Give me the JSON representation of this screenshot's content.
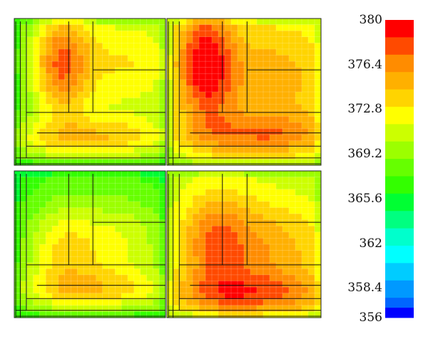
{
  "chart_data": {
    "type": "heatmap",
    "panels": 4,
    "panel_layout": "2x2",
    "colorbar": {
      "min": 356,
      "max": 380,
      "tick_labels": [
        "380",
        "376.4",
        "372.8",
        "369.2",
        "365.6",
        "362",
        "358.4",
        "356"
      ],
      "tick_values": [
        380,
        376.4,
        372.8,
        369.2,
        365.6,
        362,
        358.4,
        356
      ],
      "bands": [
        {
          "from": 378.6,
          "to": 380.0,
          "color": "#ff0000"
        },
        {
          "from": 377.2,
          "to": 378.6,
          "color": "#ff4a00"
        },
        {
          "from": 375.8,
          "to": 377.2,
          "color": "#ff8c00"
        },
        {
          "from": 374.4,
          "to": 375.8,
          "color": "#ffb000"
        },
        {
          "from": 373.0,
          "to": 374.4,
          "color": "#ffd400"
        },
        {
          "from": 371.6,
          "to": 373.0,
          "color": "#ffff00"
        },
        {
          "from": 370.2,
          "to": 371.6,
          "color": "#ccff00"
        },
        {
          "from": 368.8,
          "to": 370.2,
          "color": "#9cff00"
        },
        {
          "from": 367.4,
          "to": 368.8,
          "color": "#66ff00"
        },
        {
          "from": 366.0,
          "to": 367.4,
          "color": "#33ff00"
        },
        {
          "from": 364.6,
          "to": 366.0,
          "color": "#00ff33"
        },
        {
          "from": 363.2,
          "to": 364.6,
          "color": "#00ff80"
        },
        {
          "from": 361.8,
          "to": 363.2,
          "color": "#00ffcc"
        },
        {
          "from": 360.4,
          "to": 361.8,
          "color": "#00ffff"
        },
        {
          "from": 359.0,
          "to": 360.4,
          "color": "#00ccff"
        },
        {
          "from": 357.6,
          "to": 359.0,
          "color": "#0099ff"
        },
        {
          "from": 356.8,
          "to": 357.6,
          "color": "#0066ff"
        },
        {
          "from": 356.0,
          "to": 356.8,
          "color": "#0000ff"
        }
      ]
    },
    "field_model": [
      {
        "panel": "top-left",
        "base": 367.0,
        "hot": [
          {
            "cx": 0.3,
            "cy": 0.3,
            "rx": 0.2,
            "ry": 0.4,
            "amp": 8.5
          },
          {
            "cx": 0.75,
            "cy": 0.3,
            "rx": 0.45,
            "ry": 0.45,
            "amp": 6.0
          },
          {
            "cx": 0.5,
            "cy": 0.82,
            "rx": 0.6,
            "ry": 0.15,
            "amp": 6.0
          }
        ]
      },
      {
        "panel": "top-right",
        "base": 369.5,
        "hot": [
          {
            "cx": 0.24,
            "cy": 0.3,
            "rx": 0.2,
            "ry": 0.45,
            "amp": 8.5
          },
          {
            "cx": 0.7,
            "cy": 0.4,
            "rx": 0.5,
            "ry": 0.5,
            "amp": 5.5
          },
          {
            "cx": 0.6,
            "cy": 0.8,
            "rx": 0.55,
            "ry": 0.15,
            "amp": 5.0
          }
        ]
      },
      {
        "panel": "bottom-left",
        "base": 366.5,
        "hot": [
          {
            "cx": 0.3,
            "cy": 0.55,
            "rx": 0.25,
            "ry": 0.35,
            "amp": 5.5
          },
          {
            "cx": 0.7,
            "cy": 0.5,
            "rx": 0.35,
            "ry": 0.35,
            "amp": 5.0
          },
          {
            "cx": 0.55,
            "cy": 0.82,
            "rx": 0.6,
            "ry": 0.15,
            "amp": 5.0
          }
        ]
      },
      {
        "panel": "bottom-right",
        "base": 370.0,
        "hot": [
          {
            "cx": 0.3,
            "cy": 0.5,
            "rx": 0.25,
            "ry": 0.4,
            "amp": 6.0
          },
          {
            "cx": 0.7,
            "cy": 0.55,
            "rx": 0.4,
            "ry": 0.4,
            "amp": 5.0
          },
          {
            "cx": 0.55,
            "cy": 0.85,
            "rx": 0.6,
            "ry": 0.15,
            "amp": 5.0
          }
        ]
      }
    ]
  }
}
